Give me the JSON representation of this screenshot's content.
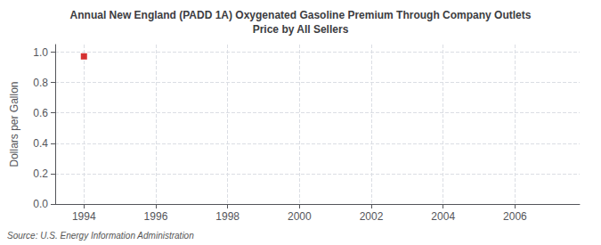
{
  "chart_data": {
    "type": "scatter",
    "title": "Annual New England (PADD 1A) Oxygenated Gasoline Premium Through Company Outlets\nPrice by All Sellers",
    "ylabel": "Dollars per Gallon",
    "source": "Source: U.S. Energy Information Administration",
    "x": [
      1994.0
    ],
    "values": [
      0.972
    ],
    "color": "#cc0000",
    "marker": "square",
    "xlim": [
      1993.2,
      2007.8
    ],
    "ylim": [
      0.0,
      1.05
    ],
    "xticks": [
      1994,
      1996,
      1998,
      2000,
      2002,
      2004,
      2006
    ],
    "yticks": [
      {
        "value": 0.0,
        "label": "0.0"
      },
      0.2,
      0.4,
      0.6,
      0.8,
      {
        "value": 1.0,
        "label": "1.0"
      }
    ],
    "grid": true
  }
}
